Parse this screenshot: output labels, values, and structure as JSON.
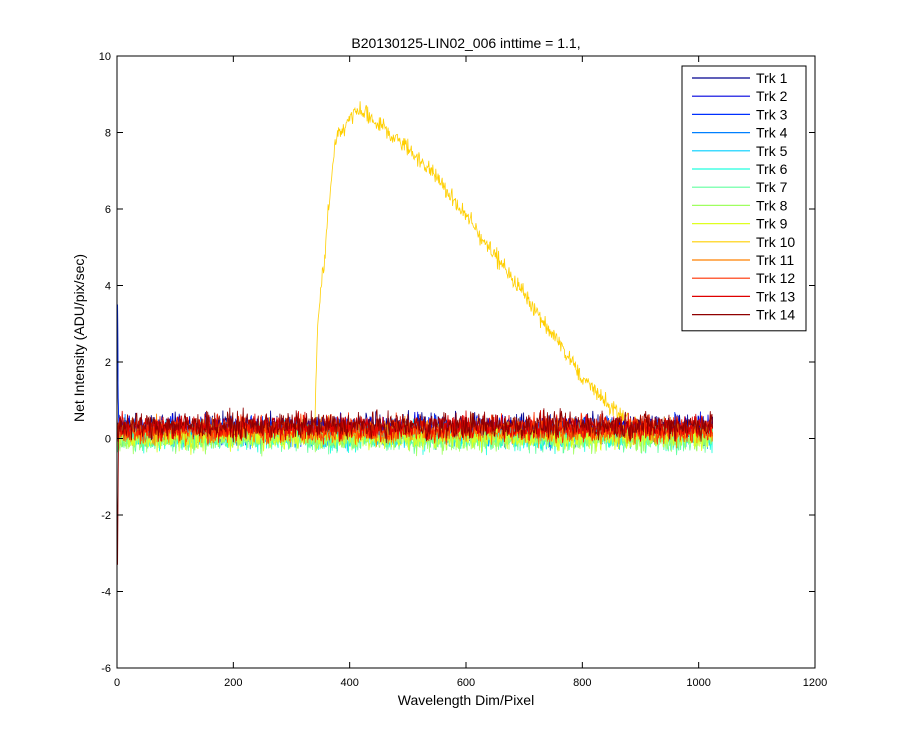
{
  "chart_data": {
    "type": "line",
    "title": "B20130125-LIN02_006 inttime = 1.1,",
    "xlabel": "Wavelength Dim/Pixel",
    "ylabel": "Net Intensity (ADU/pix/sec)",
    "xlim": [
      0,
      1200
    ],
    "ylim": [
      -6,
      10
    ],
    "xticks": [
      "0",
      "200",
      "400",
      "600",
      "800",
      "1000",
      "1200"
    ],
    "yticks": [
      "-6",
      "-4",
      "-2",
      "0",
      "2",
      "4",
      "6",
      "8",
      "10"
    ],
    "grid": false,
    "legend_position": "top-right",
    "noise_baseline": {
      "x_range": [
        0,
        1024
      ],
      "center": 0.1,
      "spread": 0.85
    },
    "series": [
      {
        "name": "Trk 1",
        "color": "#00008f",
        "baseline": 0.2
      },
      {
        "name": "Trk 2",
        "color": "#0000df",
        "baseline": 0.15
      },
      {
        "name": "Trk 3",
        "color": "#0030ff",
        "baseline": 0.1
      },
      {
        "name": "Trk 4",
        "color": "#0080ff",
        "baseline": 0.05
      },
      {
        "name": "Trk 5",
        "color": "#00cfff",
        "baseline": 0.0
      },
      {
        "name": "Trk 6",
        "color": "#20ffdf",
        "baseline": -0.05
      },
      {
        "name": "Trk 7",
        "color": "#60ff9f",
        "baseline": -0.1
      },
      {
        "name": "Trk 8",
        "color": "#9fff60",
        "baseline": -0.1
      },
      {
        "name": "Trk 9",
        "color": "#dfff20",
        "baseline": -0.05
      },
      {
        "name": "Trk 10",
        "color": "#ffcf00",
        "baseline": 0.0,
        "peak_profile": [
          [
            0,
            0
          ],
          [
            340,
            0.2
          ],
          [
            345,
            3
          ],
          [
            355,
            4.5
          ],
          [
            375,
            7.8
          ],
          [
            400,
            8.3
          ],
          [
            415,
            8.6
          ],
          [
            450,
            8.2
          ],
          [
            500,
            7.6
          ],
          [
            550,
            6.8
          ],
          [
            600,
            5.8
          ],
          [
            650,
            4.8
          ],
          [
            700,
            3.8
          ],
          [
            750,
            2.7
          ],
          [
            800,
            1.6
          ],
          [
            850,
            0.8
          ],
          [
            900,
            0.2
          ],
          [
            1024,
            0.1
          ]
        ]
      },
      {
        "name": "Trk 11",
        "color": "#ff8000",
        "baseline": 0.1
      },
      {
        "name": "Trk 12",
        "color": "#ff3000",
        "baseline": 0.15
      },
      {
        "name": "Trk 13",
        "color": "#df0000",
        "baseline": 0.2
      },
      {
        "name": "Trk 14",
        "color": "#8f0000",
        "baseline": 0.25
      }
    ],
    "edge_spike": {
      "x": 1,
      "y_max": 3.5,
      "y_min": -3.3
    }
  }
}
